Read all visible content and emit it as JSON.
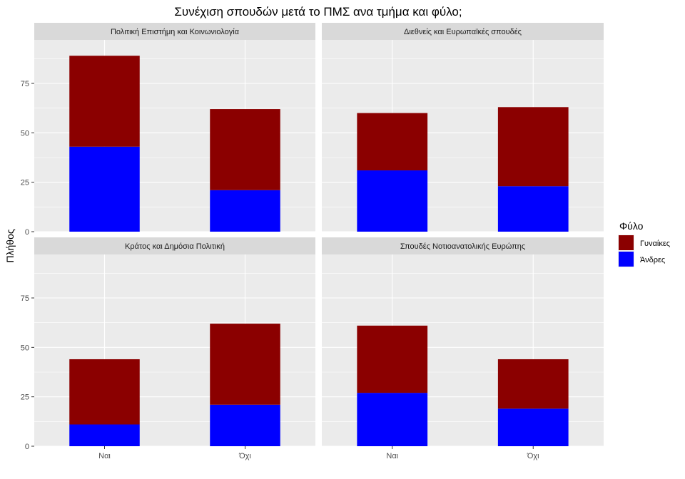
{
  "chart_data": {
    "type": "bar",
    "stacked": true,
    "title": "Συνέχιση σπουδών μετά το ΠΜΣ ανα τμήμα και φύλο;",
    "xlabel": "",
    "ylabel": "Πλήθος",
    "categories": [
      "Ναι",
      "Όχι"
    ],
    "ylim": [
      0,
      97
    ],
    "yticks": [
      0,
      25,
      50,
      75
    ],
    "grid": true,
    "legend": {
      "title": "Φύλο",
      "position": "right",
      "entries": [
        {
          "label": "Γυναίκες",
          "color": "#8B0000"
        },
        {
          "label": "Άνδρες",
          "color": "#0000FF"
        }
      ]
    },
    "panels": [
      {
        "strip": "Πολιτική Επιστήμη και Κοινωνιολογία",
        "series": [
          {
            "name": "Άνδρες",
            "values": [
              43,
              21
            ]
          },
          {
            "name": "Γυναίκες",
            "values": [
              46,
              41
            ]
          }
        ]
      },
      {
        "strip": "Διεθνείς και Ευρωπαϊκές σπουδές",
        "series": [
          {
            "name": "Άνδρες",
            "values": [
              31,
              23
            ]
          },
          {
            "name": "Γυναίκες",
            "values": [
              29,
              40
            ]
          }
        ]
      },
      {
        "strip": "Κράτος και Δημόσια Πολιτική",
        "series": [
          {
            "name": "Άνδρες",
            "values": [
              11,
              21
            ]
          },
          {
            "name": "Γυναίκες",
            "values": [
              33,
              41
            ]
          }
        ]
      },
      {
        "strip": "Σπουδές Νοτιοανατολικής Ευρώπης",
        "series": [
          {
            "name": "Άνδρες",
            "values": [
              27,
              19
            ]
          },
          {
            "name": "Γυναίκες",
            "values": [
              34,
              25
            ]
          }
        ]
      }
    ]
  }
}
